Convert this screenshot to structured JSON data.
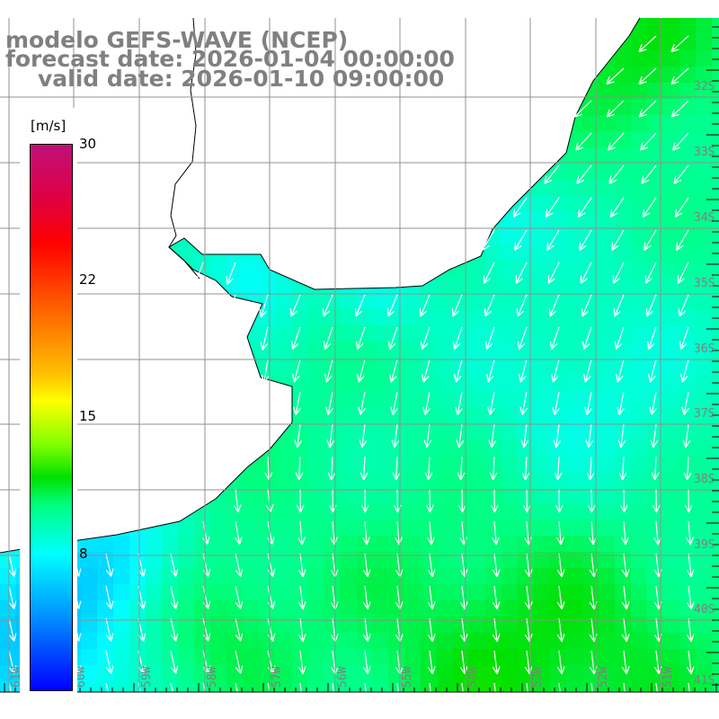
{
  "title": {
    "line1": "modelo GEFS-WAVE (NCEP)",
    "line2": "forecast date: 2026-01-04 00:00:00",
    "line3": "valid date: 2026-01-10 09:00:00"
  },
  "colorbar": {
    "units": "[m/s]",
    "min": 1,
    "max": 30,
    "ticks": [
      {
        "value": 30,
        "label": "30"
      },
      {
        "value": 22,
        "label": "22"
      },
      {
        "value": 15,
        "label": "15"
      },
      {
        "value": 8,
        "label": "8"
      }
    ]
  },
  "axes": {
    "lon_labels": [
      "61W",
      "60W",
      "59W",
      "58W",
      "57W",
      "56W",
      "55W",
      "54W",
      "53W",
      "52W",
      "51W"
    ],
    "lat_labels": [
      "32S",
      "33S",
      "34S",
      "35S",
      "36S",
      "37S",
      "38S",
      "39S",
      "40S",
      "41S"
    ]
  },
  "colors": {
    "label": "#808080",
    "grid": "#909090",
    "land": "#ffffff",
    "arrow": "#ffffff"
  }
}
